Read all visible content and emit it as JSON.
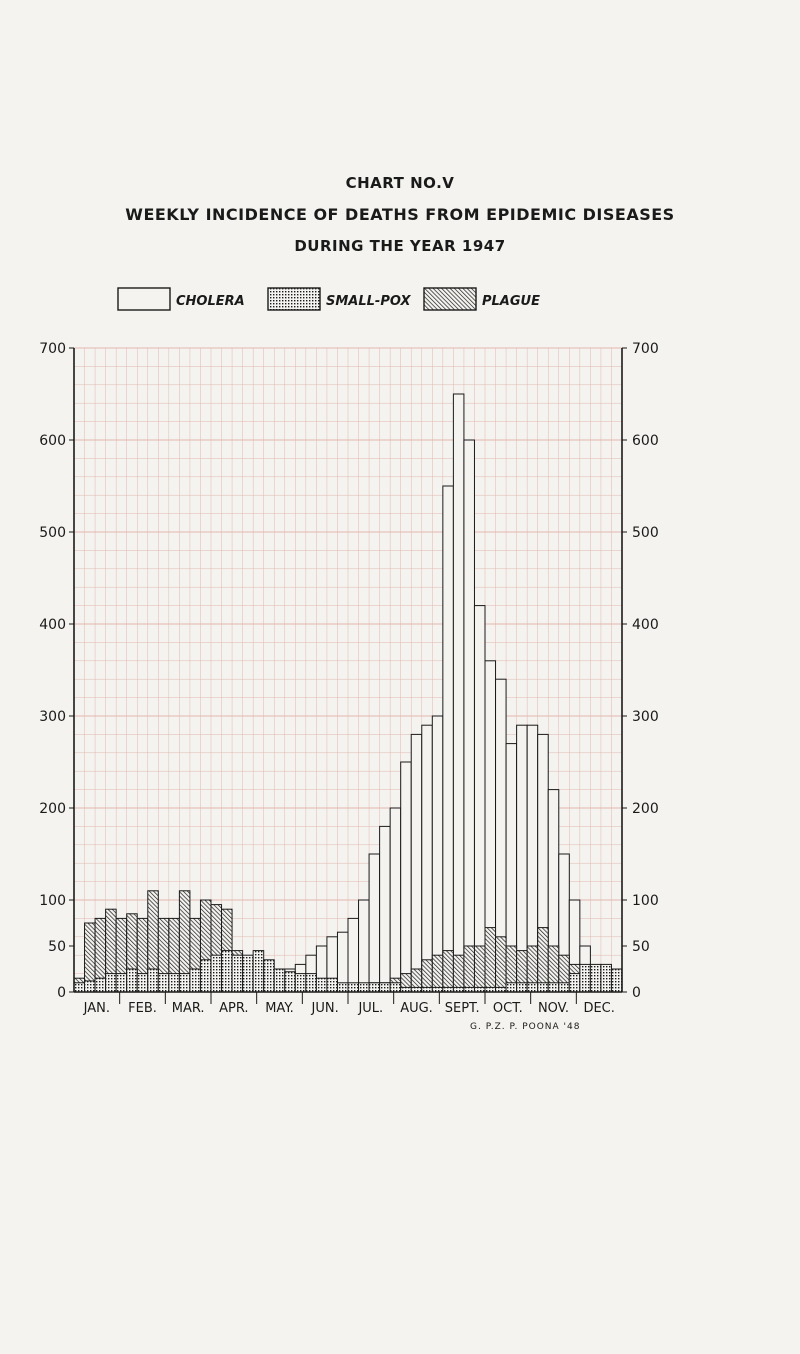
{
  "header": {
    "chart_no": "CHART NO.Ⅴ",
    "title_line1": "WEEKLY INCIDENCE OF DEATHS FROM EPIDEMIC DISEASES",
    "title_line2": "DURING THE YEAR 1947"
  },
  "credit": "G. P.Z. P. POONA '48",
  "colors": {
    "ink": "#1a1a1a",
    "paper": "#f4f3ef",
    "grid": "#e2b7ae"
  },
  "chart_data": {
    "type": "bar",
    "ylim": [
      0,
      700
    ],
    "y_ticks": [
      0,
      50,
      100,
      200,
      300,
      400,
      500,
      600,
      700
    ],
    "y_tick_labels_left": [
      "0",
      "50",
      "100",
      "200",
      "300",
      "400",
      "500",
      "600",
      "700"
    ],
    "y_tick_labels_right": [
      "0",
      "50",
      "100",
      "200",
      "300",
      "400",
      "500",
      "600",
      "700"
    ],
    "months": [
      "JAN.",
      "FEB.",
      "MAR.",
      "APR.",
      "MAY.",
      "JUN.",
      "JUL.",
      "AUG.",
      "SEPT.",
      "OCT.",
      "NOV.",
      "DEC."
    ],
    "weeks": 52,
    "legend_position": "top",
    "series": [
      {
        "name": "CHOLERA",
        "pattern": "empty",
        "values": [
          0,
          0,
          0,
          0,
          0,
          0,
          0,
          0,
          0,
          0,
          0,
          0,
          0,
          0,
          0,
          0,
          0,
          0,
          0,
          15,
          25,
          30,
          40,
          50,
          60,
          65,
          80,
          100,
          150,
          180,
          200,
          250,
          280,
          290,
          300,
          550,
          650,
          600,
          420,
          360,
          340,
          270,
          290,
          290,
          280,
          220,
          150,
          100,
          50,
          20,
          10,
          5
        ]
      },
      {
        "name": "SMALL-POX",
        "pattern": "dots",
        "values": [
          10,
          12,
          15,
          20,
          20,
          25,
          20,
          25,
          20,
          20,
          20,
          25,
          35,
          40,
          45,
          40,
          40,
          45,
          35,
          25,
          22,
          20,
          20,
          15,
          15,
          10,
          10,
          10,
          10,
          10,
          10,
          5,
          5,
          5,
          5,
          5,
          5,
          5,
          5,
          5,
          5,
          10,
          10,
          10,
          10,
          10,
          10,
          20,
          30,
          30,
          30,
          25
        ]
      },
      {
        "name": "PLAGUE",
        "pattern": "hatch",
        "values": [
          15,
          75,
          80,
          90,
          80,
          85,
          80,
          110,
          80,
          80,
          110,
          80,
          100,
          95,
          90,
          45,
          35,
          30,
          20,
          20,
          10,
          5,
          5,
          5,
          5,
          5,
          5,
          5,
          10,
          10,
          15,
          20,
          25,
          35,
          40,
          45,
          40,
          50,
          50,
          70,
          60,
          50,
          45,
          50,
          70,
          50,
          40,
          30,
          20,
          15,
          15,
          10
        ]
      }
    ]
  }
}
